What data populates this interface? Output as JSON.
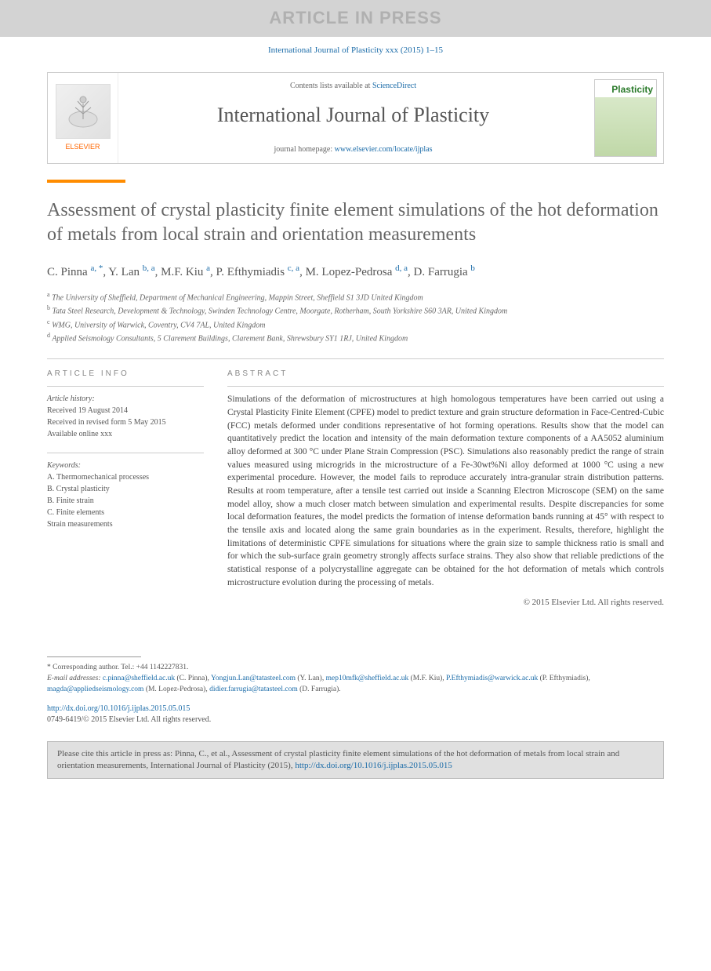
{
  "banner": "ARTICLE IN PRESS",
  "top_citation": "International Journal of Plasticity xxx (2015) 1–15",
  "header": {
    "contents_prefix": "Contents lists available at ",
    "contents_link": "ScienceDirect",
    "journal_name": "International Journal of Plasticity",
    "homepage_prefix": "journal homepage: ",
    "homepage_url": "www.elsevier.com/locate/ijplas",
    "elsevier_label": "ELSEVIER",
    "cover_word": "Plasticity"
  },
  "article": {
    "title": "Assessment of crystal plasticity finite element simulations of the hot deformation of metals from local strain and orientation measurements",
    "authors": [
      {
        "name": "C. Pinna",
        "aff": "a, *"
      },
      {
        "name": "Y. Lan",
        "aff": "b, a"
      },
      {
        "name": "M.F. Kiu",
        "aff": "a"
      },
      {
        "name": "P. Efthymiadis",
        "aff": "c, a"
      },
      {
        "name": "M. Lopez-Pedrosa",
        "aff": "d, a"
      },
      {
        "name": "D. Farrugia",
        "aff": "b"
      }
    ],
    "affiliations": [
      {
        "key": "a",
        "text": "The University of Sheffield, Department of Mechanical Engineering, Mappin Street, Sheffield S1 3JD United Kingdom"
      },
      {
        "key": "b",
        "text": "Tata Steel Research, Development & Technology, Swinden Technology Centre, Moorgate, Rotherham, South Yorkshire S60 3AR, United Kingdom"
      },
      {
        "key": "c",
        "text": "WMG, University of Warwick, Coventry, CV4 7AL, United Kingdom"
      },
      {
        "key": "d",
        "text": "Applied Seismology Consultants, 5 Clarement Buildings, Clarement Bank, Shrewsbury SY1 1RJ, United Kingdom"
      }
    ]
  },
  "info": {
    "article_info_label": "ARTICLE INFO",
    "history_label": "Article history:",
    "received": "Received 19 August 2014",
    "revised": "Received in revised form 5 May 2015",
    "online": "Available online xxx",
    "keywords_label": "Keywords:",
    "keywords": [
      "A. Thermomechanical processes",
      "B. Crystal plasticity",
      "B. Finite strain",
      "C. Finite elements",
      "Strain measurements"
    ]
  },
  "abstract": {
    "label": "ABSTRACT",
    "text": "Simulations of the deformation of microstructures at high homologous temperatures have been carried out using a Crystal Plasticity Finite Element (CPFE) model to predict texture and grain structure deformation in Face-Centred-Cubic (FCC) metals deformed under conditions representative of hot forming operations. Results show that the model can quantitatively predict the location and intensity of the main deformation texture components of a AA5052 aluminium alloy deformed at 300 °C under Plane Strain Compression (PSC). Simulations also reasonably predict the range of strain values measured using microgrids in the microstructure of a Fe-30wt%Ni alloy deformed at 1000 °C using a new experimental procedure. However, the model fails to reproduce accurately intra-granular strain distribution patterns. Results at room temperature, after a tensile test carried out inside a Scanning Electron Microscope (SEM) on the same model alloy, show a much closer match between simulation and experimental results. Despite discrepancies for some local deformation features, the model predicts the formation of intense deformation bands running at 45° with respect to the tensile axis and located along the same grain boundaries as in the experiment. Results, therefore, highlight the limitations of deterministic CPFE simulations for situations where the grain size to sample thickness ratio is small and for which the sub-surface grain geometry strongly affects surface strains. They also show that reliable predictions of the statistical response of a polycrystalline aggregate can be obtained for the hot deformation of metals which controls microstructure evolution during the processing of metals.",
    "copyright": "© 2015 Elsevier Ltd. All rights reserved."
  },
  "footnotes": {
    "corresponding": "* Corresponding author. Tel.: +44 1142227831.",
    "email_label": "E-mail addresses:",
    "emails": [
      {
        "addr": "c.pinna@sheffield.ac.uk",
        "who": "(C. Pinna)"
      },
      {
        "addr": "Yongjun.Lan@tatasteel.com",
        "who": "(Y. Lan)"
      },
      {
        "addr": "mep10mfk@sheffield.ac.uk",
        "who": "(M.F. Kiu)"
      },
      {
        "addr": "P.Efthymiadis@warwick.ac.uk",
        "who": "(P. Efthymiadis)"
      },
      {
        "addr": "magda@appliedseismology.com",
        "who": "(M. Lopez-Pedrosa)"
      },
      {
        "addr": "didier.farrugia@tatasteel.com",
        "who": "(D. Farrugia)"
      }
    ]
  },
  "doi": {
    "url": "http://dx.doi.org/10.1016/j.ijplas.2015.05.015",
    "issn_line": "0749-6419/© 2015 Elsevier Ltd. All rights reserved."
  },
  "cite_box": {
    "prefix": "Please cite this article in press as: Pinna, C., et al., Assessment of crystal plasticity finite element simulations of the hot deformation of metals from local strain and orientation measurements, International Journal of Plasticity (2015), ",
    "url": "http://dx.doi.org/10.1016/j.ijplas.2015.05.015"
  },
  "colors": {
    "link": "#1a6ba8",
    "orange": "#ff8c00",
    "banner_bg": "#d3d3d3",
    "banner_fg": "#b0b0b0",
    "cite_bg": "#e0e0e0"
  }
}
